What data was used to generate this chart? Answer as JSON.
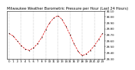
{
  "title": "Milwaukee Weather Barometric Pressure per Hour (Last 24 Hours)",
  "background_color": "#ffffff",
  "line_color": "#dd0000",
  "marker_color": "#000000",
  "grid_color": "#888888",
  "hours": [
    0,
    1,
    2,
    3,
    4,
    5,
    6,
    7,
    8,
    9,
    10,
    11,
    12,
    13,
    14,
    15,
    16,
    17,
    18,
    19,
    20,
    21,
    22,
    23
  ],
  "pressure": [
    29.72,
    29.68,
    29.6,
    29.52,
    29.46,
    29.44,
    29.48,
    29.55,
    29.65,
    29.78,
    29.9,
    29.98,
    30.02,
    29.96,
    29.84,
    29.7,
    29.55,
    29.42,
    29.35,
    29.38,
    29.44,
    29.52,
    29.62,
    29.72
  ],
  "ylim_min": 29.3,
  "ylim_max": 30.1,
  "ytick_values": [
    29.3,
    29.4,
    29.5,
    29.6,
    29.7,
    29.8,
    29.9,
    30.0,
    30.1
  ],
  "ytick_labels": [
    "29.30",
    "29.40",
    "29.50",
    "29.60",
    "29.70",
    "29.80",
    "29.90",
    "30.00",
    "30.10"
  ],
  "xtick_step": 1,
  "title_fontsize": 3.8,
  "tick_fontsize": 3.0,
  "grid_line_step": 3,
  "marker_size": 1.5,
  "line_width": 0.55
}
